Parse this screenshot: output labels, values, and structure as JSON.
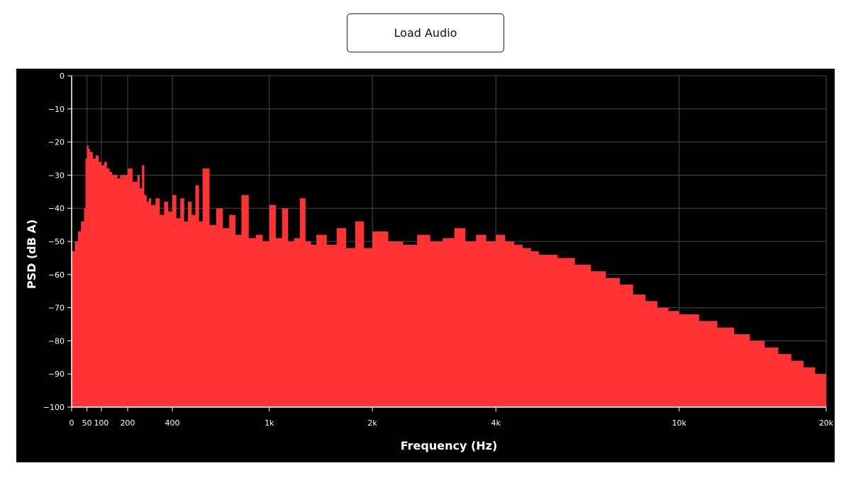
{
  "toolbar": {
    "load_label": "Load Audio"
  },
  "chart_data": {
    "type": "area",
    "title": "",
    "xlabel": "Frequency (Hz)",
    "ylabel": "PSD (dB A)",
    "xlim": [
      0,
      20000
    ],
    "ylim": [
      -100,
      0
    ],
    "grid": true,
    "colors": {
      "background": "#000000",
      "fill": "#ff3333",
      "grid": "#4a4a4a",
      "text": "#ffffff"
    },
    "x_ticks": [
      {
        "value": 0,
        "label": "0"
      },
      {
        "value": 50,
        "label": "50"
      },
      {
        "value": 100,
        "label": "100"
      },
      {
        "value": 200,
        "label": "200"
      },
      {
        "value": 400,
        "label": "400"
      },
      {
        "value": 1000,
        "label": "1k"
      },
      {
        "value": 2000,
        "label": "2k"
      },
      {
        "value": 4000,
        "label": "4k"
      },
      {
        "value": 10000,
        "label": "10k"
      },
      {
        "value": 20000,
        "label": "20k"
      }
    ],
    "y_ticks": [
      {
        "value": 0,
        "label": "0"
      },
      {
        "value": -10,
        "label": "−10"
      },
      {
        "value": -20,
        "label": "−20"
      },
      {
        "value": -30,
        "label": "−30"
      },
      {
        "value": -40,
        "label": "−40"
      },
      {
        "value": -50,
        "label": "−50"
      },
      {
        "value": -60,
        "label": "−60"
      },
      {
        "value": -70,
        "label": "−70"
      },
      {
        "value": -80,
        "label": "−80"
      },
      {
        "value": -90,
        "label": "−90"
      },
      {
        "value": -100,
        "label": "−100"
      }
    ],
    "series": [
      {
        "x": [
          0,
          10,
          20,
          30,
          40,
          45,
          50,
          55,
          60,
          70,
          80,
          90,
          100,
          110,
          120,
          130,
          140,
          150,
          160,
          170,
          180,
          200,
          220,
          240,
          250,
          260,
          270,
          280,
          290,
          300,
          320,
          340,
          360,
          380,
          400,
          420,
          440,
          460,
          480,
          500,
          520,
          540,
          560,
          600,
          640,
          680,
          720,
          760,
          800,
          850,
          900,
          950,
          1000,
          1050,
          1100,
          1150,
          1200,
          1250,
          1300,
          1350,
          1400,
          1500,
          1600,
          1700,
          1800,
          1900,
          2000,
          2200,
          2400,
          2600,
          2800,
          3000,
          3200,
          3400,
          3600,
          3800,
          4000,
          4200,
          4400,
          4600,
          4800,
          5000,
          5500,
          6000,
          6500,
          7000,
          7500,
          8000,
          8500,
          9000,
          9500,
          10000,
          11000,
          12000,
          13000,
          14000,
          15000,
          16000,
          17000,
          18000,
          19000,
          20000
        ],
        "y": [
          -53,
          -50,
          -47,
          -44,
          -40,
          -25,
          -21,
          -22,
          -23,
          -25,
          -24,
          -26,
          -27,
          -26,
          -28,
          -29,
          -30,
          -30,
          -31,
          -30,
          -30,
          -28,
          -32,
          -30,
          -34,
          -27,
          -36,
          -38,
          -37,
          -39,
          -37,
          -42,
          -38,
          -41,
          -36,
          -43,
          -37,
          -44,
          -38,
          -42,
          -33,
          -44,
          -28,
          -45,
          -40,
          -46,
          -42,
          -48,
          -36,
          -49,
          -48,
          -50,
          -39,
          -49,
          -40,
          -50,
          -49,
          -37,
          -50,
          -51,
          -48,
          -51,
          -46,
          -52,
          -44,
          -52,
          -47,
          -50,
          -51,
          -48,
          -50,
          -49,
          -46,
          -50,
          -48,
          -50,
          -48,
          -50,
          -51,
          -52,
          -53,
          -54,
          -55,
          -57,
          -59,
          -61,
          -63,
          -66,
          -68,
          -70,
          -71,
          -72,
          -74,
          -76,
          -78,
          -80,
          -82,
          -84,
          -86,
          -88,
          -90,
          -96
        ]
      }
    ]
  }
}
